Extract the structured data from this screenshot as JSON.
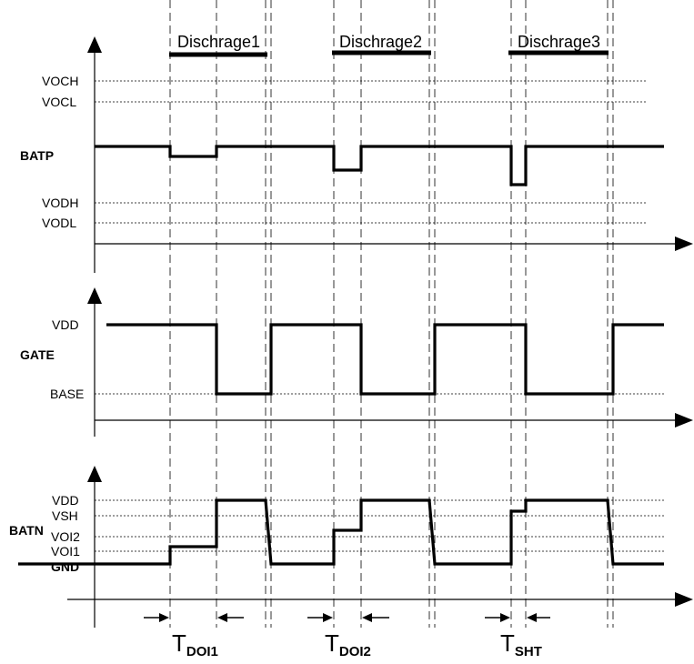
{
  "phases": [
    {
      "label": "Dischrage1"
    },
    {
      "label": "Dischrage2"
    },
    {
      "label": "Dischrage3"
    }
  ],
  "batp": {
    "signal": "BATP",
    "levels": {
      "voch": "VOCH",
      "vocl": "VOCL",
      "vodh": "VODH",
      "vodl": "VODL"
    }
  },
  "gate": {
    "signal": "GATE",
    "levels": {
      "vdd": "VDD",
      "base": "BASE"
    }
  },
  "batn": {
    "signal": "BATN",
    "levels": {
      "vdd": "VDD",
      "vsh": "VSH",
      "voi2": "VOI2",
      "voi1": "VOI1",
      "gnd": "GND"
    }
  },
  "delays": [
    {
      "main": "T",
      "sub": "DOI1"
    },
    {
      "main": "T",
      "sub": "DOI2"
    },
    {
      "main": "T",
      "sub": "SHT"
    }
  ]
}
